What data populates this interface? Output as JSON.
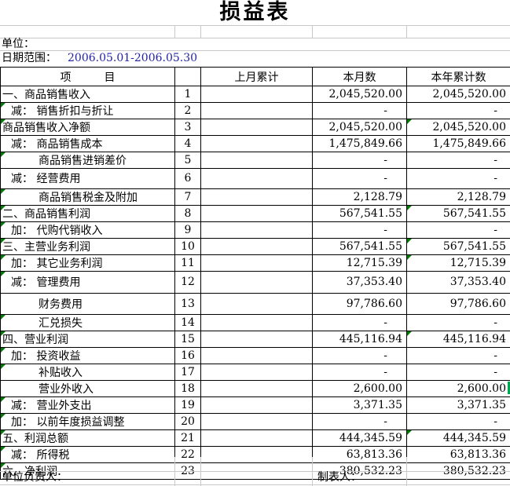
{
  "title": "损益表",
  "meta": {
    "unit_label": "单位：",
    "date_label": "日期范围：",
    "date_value": "2006.05.01-2006.05.30"
  },
  "table": {
    "headers": {
      "item": "项　　　目",
      "line_no": "",
      "last_month": "上月累计",
      "this_month": "本月数",
      "year_total": "本年累计数"
    }
  },
  "rows": [
    {
      "no": "1",
      "item": "一、商品销售收入",
      "indent": 0,
      "tri_item": false,
      "last": "",
      "month": "2,045,520.00",
      "year": "2,045,520.00",
      "tri_year": false
    },
    {
      "no": "2",
      "item": "减： 销售折扣与折让",
      "indent": 1,
      "tri_item": true,
      "last": "",
      "month": "-",
      "year": "-",
      "tri_year": false
    },
    {
      "no": "3",
      "item": "商品销售收入净额",
      "indent": 0,
      "tri_item": true,
      "last": "",
      "month": "2,045,520.00",
      "year": "2,045,520.00",
      "tri_year": true
    },
    {
      "no": "4",
      "item": "减： 商品销售成本",
      "indent": 1,
      "tri_item": false,
      "last": "",
      "month": "1,475,849.66",
      "year": "1,475,849.66",
      "tri_year": false
    },
    {
      "no": "5",
      "item": "商品销售进销差价",
      "indent": 2,
      "tri_item": true,
      "last": "",
      "month": "-",
      "year": "-",
      "tri_year": false
    },
    {
      "no": "6",
      "item": "减： 经营费用",
      "indent": 1,
      "tri_item": false,
      "last": "",
      "month": "-",
      "year": "-",
      "tri_year": false
    },
    {
      "no": "7",
      "item": "商品销售税金及附加",
      "indent": 2,
      "tri_item": true,
      "last": "",
      "month": "2,128.79",
      "year": "2,128.79",
      "tri_year": false
    },
    {
      "no": "8",
      "item": "二、商品销售利润",
      "indent": 0,
      "tri_item": true,
      "last": "",
      "month": "567,541.55",
      "year": "567,541.55",
      "tri_year": true
    },
    {
      "no": "9",
      "item": "加： 代购代销收入",
      "indent": 1,
      "tri_item": true,
      "last": "",
      "month": "-",
      "year": "-",
      "tri_year": false
    },
    {
      "no": "10",
      "item": "三、主营业务利润",
      "indent": 0,
      "tri_item": true,
      "last": "",
      "month": "567,541.55",
      "year": "567,541.55",
      "tri_year": true
    },
    {
      "no": "11",
      "item": "加： 其它业务利润",
      "indent": 1,
      "tri_item": true,
      "last": "",
      "month": "12,715.39",
      "year": "12,715.39",
      "tri_year": true
    },
    {
      "no": "12",
      "item": "减： 管理费用",
      "indent": 1,
      "tri_item": true,
      "last": "",
      "month": "37,353.40",
      "year": "37,353.40",
      "tri_year": false
    },
    {
      "no": "13",
      "item": "财务费用",
      "indent": 2,
      "tri_item": false,
      "last": "",
      "month": "97,786.60",
      "year": "97,786.60",
      "tri_year": false
    },
    {
      "no": "14",
      "item": "汇兑损失",
      "indent": 2,
      "tri_item": true,
      "last": "",
      "month": "-",
      "year": "-",
      "tri_year": false
    },
    {
      "no": "15",
      "item": "四、营业利润",
      "indent": 0,
      "tri_item": true,
      "last": "",
      "month": "445,116.94",
      "year": "445,116.94",
      "tri_year": true
    },
    {
      "no": "16",
      "item": "加： 投资收益",
      "indent": 1,
      "tri_item": true,
      "last": "",
      "month": "-",
      "year": "-",
      "tri_year": false
    },
    {
      "no": "17",
      "item": "补贴收入",
      "indent": 2,
      "tri_item": true,
      "last": "",
      "month": "-",
      "year": "-",
      "tri_year": false
    },
    {
      "no": "18",
      "item": "营业外收入",
      "indent": 2,
      "tri_item": false,
      "last": "",
      "month": "2,600.00",
      "year": "2,600.00",
      "tri_year": false,
      "right_bar": true
    },
    {
      "no": "19",
      "item": "减： 营业外支出",
      "indent": 1,
      "tri_item": true,
      "last": "",
      "month": "3,371.35",
      "year": "3,371.35",
      "tri_year": false
    },
    {
      "no": "20",
      "item": "加： 以前年度损益调整",
      "indent": 1,
      "tri_item": true,
      "last": "",
      "month": "-",
      "year": "-",
      "tri_year": false
    },
    {
      "no": "21",
      "item": "五、利润总额",
      "indent": 0,
      "tri_item": true,
      "last": "",
      "month": "444,345.59",
      "year": "444,345.59",
      "tri_year": true
    },
    {
      "no": "22",
      "item": "减： 所得税",
      "indent": 1,
      "tri_item": true,
      "last": "",
      "month": "63,813.36",
      "year": "63,813.36",
      "tri_year": false
    },
    {
      "no": "23",
      "item": "六、净利润",
      "indent": 0,
      "tri_item": true,
      "last": "",
      "month": "380,532.23",
      "year": "380,532.23",
      "tri_year": false
    }
  ],
  "footer": {
    "manager_label": "单位负责人：",
    "preparer_label": "制表人："
  },
  "colors": {
    "grid_line": "#c8c8c8",
    "table_border": "#000000",
    "flag_green": "#007a00",
    "date_blue": "#2222aa",
    "selection_green": "#00a650"
  }
}
